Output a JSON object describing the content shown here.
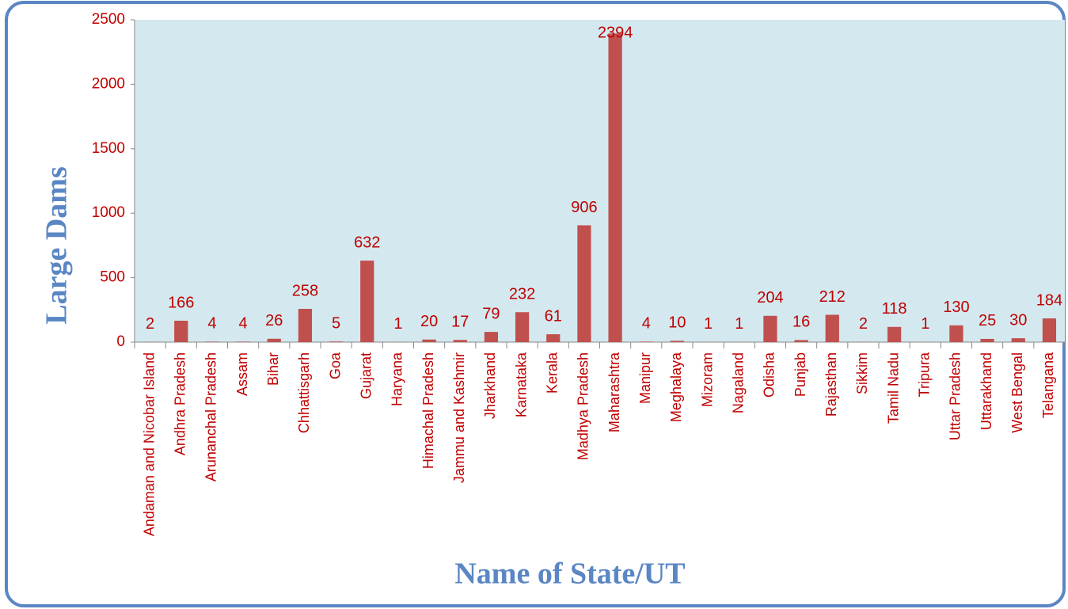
{
  "chart_data": {
    "type": "bar",
    "x_label": "Name of State/UT",
    "y_label": "Large Dams",
    "categories": [
      "Andaman and Nicobar Island",
      "Andhra Pradesh",
      "Arunanchal Pradesh",
      "Assam",
      "Bihar",
      "Chhattisgarh",
      "Goa",
      "Gujarat",
      "Haryana",
      "Himachal Pradesh",
      "Jammu and Kashmir",
      "Jharkhand",
      "Karnataka",
      "Kerala",
      "Madhya Pradesh",
      "Maharashtra",
      "Manipur",
      "Meghalaya",
      "Mizoram",
      "Nagaland",
      "Odisha",
      "Punjab",
      "Rajasthan",
      "Sikkim",
      "Tamil Nadu",
      "Tripura",
      "Uttar Pradesh",
      "Uttarakhand",
      "West Bengal",
      "Telangana"
    ],
    "values": [
      2,
      166,
      4,
      4,
      26,
      258,
      5,
      632,
      1,
      20,
      17,
      79,
      232,
      61,
      906,
      2394,
      4,
      10,
      1,
      1,
      204,
      16,
      212,
      2,
      118,
      1,
      130,
      25,
      30,
      184
    ],
    "color": "#c0504d",
    "ylim": [
      0,
      2500
    ],
    "yticks": [
      0,
      500,
      1000,
      1500,
      2000,
      2500
    ],
    "grid": false
  }
}
